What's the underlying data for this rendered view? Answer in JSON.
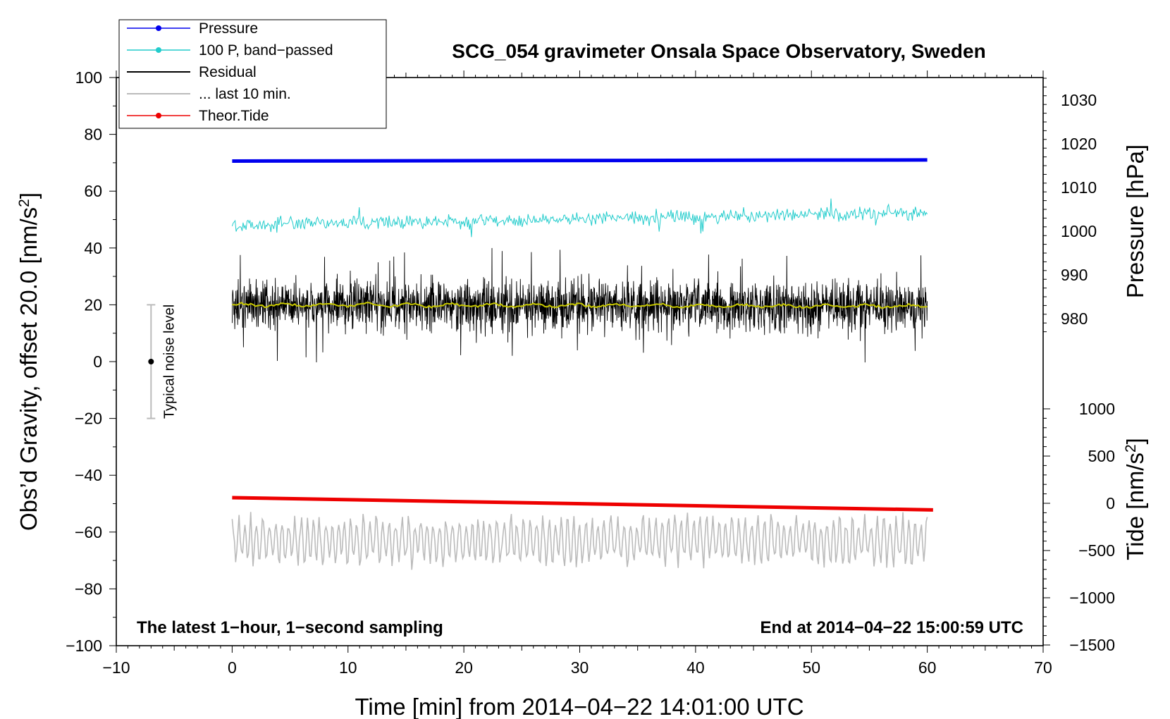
{
  "chart_data": {
    "type": "line",
    "title": "SCG_054 gravimeter Onsala Space Observatory, Sweden",
    "xlabel": "Time [min] from 2014−04−22 14:01:00 UTC",
    "ylabel_left_text": "Obs’d Gravity, offset 20.0 [nm/s",
    "ylabel_left_sup": "2",
    "ylabel_left_end": "]",
    "ylabel_right_top": "Pressure [hPa]",
    "ylabel_right_bottom_text": "Tide [nm/s",
    "ylabel_right_bottom_sup": "2",
    "ylabel_right_bottom_end": "]",
    "xlim": [
      -10,
      70
    ],
    "ylim_left": [
      -100,
      100
    ],
    "ylim_pressure": [
      970,
      1035
    ],
    "ylim_tide": [
      -1500,
      1000
    ],
    "x_ticks": [
      -10,
      0,
      10,
      20,
      30,
      40,
      50,
      60,
      70
    ],
    "x_tick_labels": [
      "−10",
      "0",
      "10",
      "20",
      "30",
      "40",
      "50",
      "60",
      "70"
    ],
    "y_left_ticks": [
      -100,
      -80,
      -60,
      -40,
      -20,
      0,
      20,
      40,
      60,
      80,
      100
    ],
    "y_left_tick_labels": [
      "−100",
      "−80",
      "−60",
      "−40",
      "−20",
      "0",
      "20",
      "40",
      "60",
      "80",
      "100"
    ],
    "pressure_ticks": [
      980,
      990,
      1000,
      1010,
      1020,
      1030
    ],
    "pressure_tick_labels": [
      "980",
      "990",
      "1000",
      "1010",
      "1020",
      "1030"
    ],
    "tide_ticks": [
      -1500,
      -1000,
      -500,
      0,
      500,
      1000
    ],
    "tide_tick_labels": [
      "−1500",
      "−1000",
      "−500",
      "0",
      "500",
      "1000"
    ],
    "note_left": "The latest 1−hour, 1−second sampling",
    "note_right": "End at 2014−04−22 15:00:59 UTC",
    "noise_bar": {
      "label": "Typical noise level",
      "x": -7,
      "center": 0,
      "low": -20,
      "high": 20
    },
    "legend": [
      {
        "label": "Pressure",
        "color": "#0000ee",
        "marker": true
      },
      {
        "label": "100 P, band−passed",
        "color": "#22cccc",
        "marker": true
      },
      {
        "label": "Residual",
        "color": "#000000",
        "marker": false
      },
      {
        "label": "... last 10 min.",
        "color": "#bbbbbb",
        "marker": false
      },
      {
        "label": "Theor.Tide",
        "color": "#ee0000",
        "marker": true
      }
    ],
    "series": [
      {
        "name": "Pressure",
        "color": "#0000ee",
        "axis": "left",
        "x": [
          0,
          60
        ],
        "y": [
          70.6,
          71.0
        ]
      },
      {
        "name": "100 P, band−passed",
        "color": "#22cccc",
        "axis": "left",
        "x_range": [
          0,
          60
        ],
        "baseline": [
          48.0,
          52.5
        ],
        "amplitude": 2.5,
        "spikes": 4
      },
      {
        "name": "Residual",
        "color": "#000000",
        "axis": "left",
        "x_range": [
          0,
          60
        ],
        "baseline": [
          20.0,
          19.5
        ],
        "amplitude": 7,
        "max_excursion": 21
      },
      {
        "name": "Residual smoothed",
        "color": "#c8c800",
        "axis": "left",
        "x_range": [
          0,
          60
        ],
        "baseline": [
          20.0,
          19.5
        ],
        "amplitude": 0.8
      },
      {
        "name": "... last 10 min.",
        "color": "#bbbbbb",
        "axis": "left",
        "x_range": [
          0,
          60
        ],
        "baseline": -63,
        "amplitude": 8,
        "max_excursion": 14
      },
      {
        "name": "Theor.Tide",
        "color": "#ee0000",
        "axis": "tide",
        "x": [
          0,
          60.5
        ],
        "y": [
          60,
          -70
        ]
      }
    ]
  }
}
